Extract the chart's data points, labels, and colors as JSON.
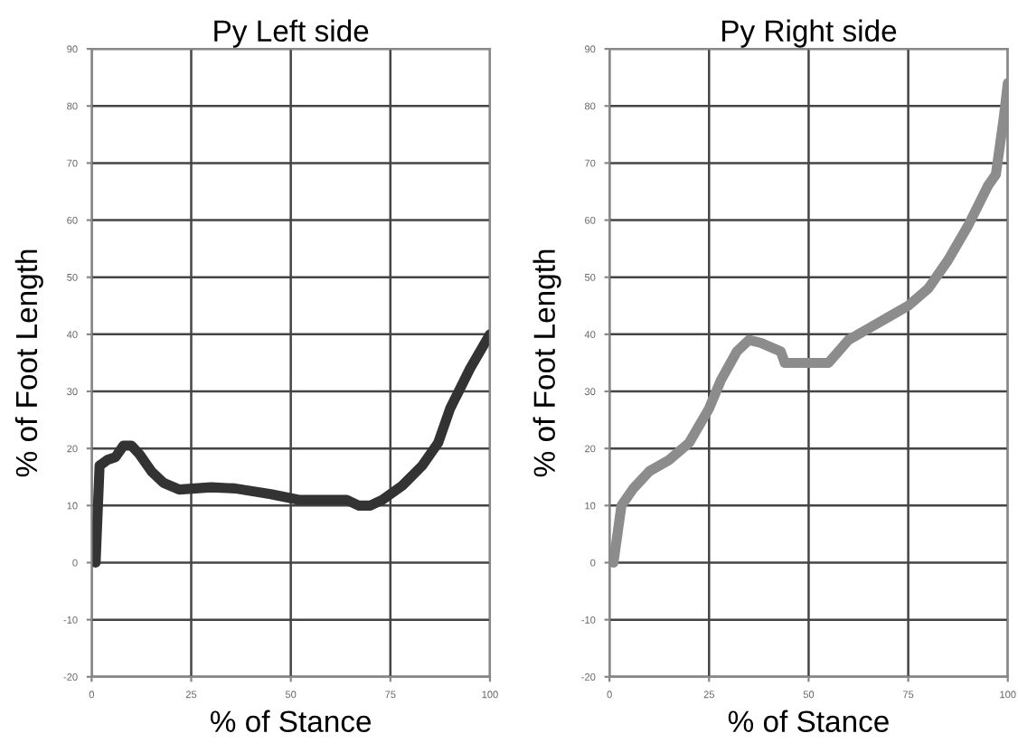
{
  "chart_data": [
    {
      "type": "line",
      "title": "Py Left side",
      "xlabel": "% of Stance",
      "ylabel": "% of Foot Length",
      "xlim": [
        0,
        100
      ],
      "ylim": [
        -20,
        90
      ],
      "xticks": [
        0,
        25,
        50,
        75,
        100
      ],
      "yticks": [
        -20,
        -10,
        0,
        10,
        20,
        30,
        40,
        50,
        60,
        70,
        80,
        90
      ],
      "grid": true,
      "series": [
        {
          "color": "#333333",
          "x": [
            1,
            2,
            4,
            6,
            8,
            10,
            12,
            15,
            18,
            22,
            30,
            36,
            45,
            52,
            60,
            64,
            67,
            70,
            73,
            78,
            83,
            87,
            90,
            95,
            100
          ],
          "values": [
            0,
            17,
            18,
            18.5,
            20.5,
            20.5,
            19,
            16,
            14,
            12.8,
            13.2,
            13,
            12,
            11,
            11,
            11,
            10,
            10,
            11,
            13.5,
            17,
            21,
            27,
            34,
            40
          ]
        }
      ]
    },
    {
      "type": "line",
      "title": "Py Right side",
      "xlabel": "% of Stance",
      "ylabel": "% of Foot Length",
      "xlim": [
        0,
        100
      ],
      "ylim": [
        -20,
        90
      ],
      "xticks": [
        0,
        25,
        50,
        75,
        100
      ],
      "yticks": [
        -20,
        -10,
        0,
        10,
        20,
        30,
        40,
        50,
        60,
        70,
        80,
        90
      ],
      "grid": true,
      "series": [
        {
          "color": "#8c8c8c",
          "x": [
            1,
            2,
            3,
            6,
            10,
            15,
            20,
            25,
            28,
            32,
            35,
            38,
            43,
            44,
            50,
            55,
            60,
            65,
            70,
            75,
            80,
            85,
            90,
            95,
            97,
            99,
            100
          ],
          "values": [
            0,
            5,
            10,
            13,
            16,
            18,
            21,
            27,
            32,
            37,
            39,
            38.5,
            37,
            35,
            35,
            35,
            39,
            41,
            43,
            45,
            48,
            53,
            59,
            66,
            68,
            78,
            84
          ]
        }
      ]
    }
  ]
}
